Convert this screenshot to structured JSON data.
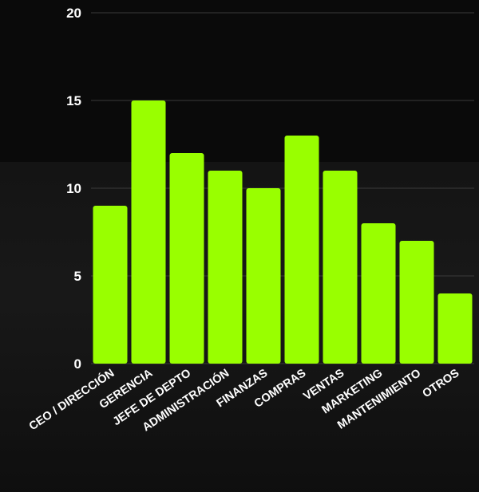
{
  "chart_data": {
    "type": "bar",
    "categories": [
      "CEO / DIRECCIÓN",
      "GERENCIA",
      "JEFE DE DEPTO",
      "ADMINISTRACIÓN",
      "FINANZAS",
      "COMPRAS",
      "VENTAS",
      "MARKETING",
      "MANTENIMIENTO",
      "OTROS"
    ],
    "values": [
      9,
      15,
      12,
      11,
      10,
      13,
      11,
      8,
      7,
      4
    ],
    "yticks": [
      "0",
      "5",
      "10",
      "15",
      "20"
    ],
    "ylim": [
      0,
      20
    ],
    "grid": true,
    "bar_color": "#99ff00",
    "background_color": "#0a0a0a",
    "text_color": "#ffffff",
    "grid_color": "#3a3a3a"
  }
}
